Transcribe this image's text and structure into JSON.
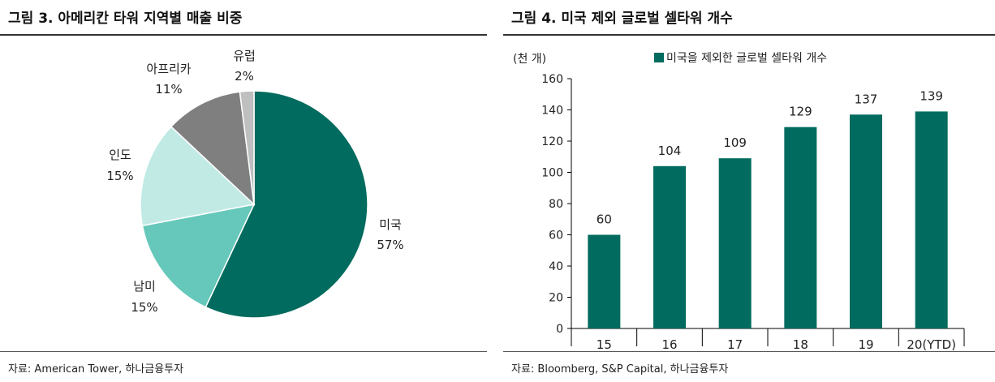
{
  "left": {
    "title": "그림 3. 아메리칸 타워 지역별 매출 비중",
    "source": "자료: American Tower, 하나금융투자"
  },
  "right": {
    "title": "그림 4. 미국 제외 글로벌 셀타워 개수",
    "source": "자료: Bloomberg, S&P Capital, 하나금융투자"
  },
  "chart_data": [
    {
      "type": "pie",
      "title": "",
      "start": "12 o'clock, clockwise",
      "slices": [
        {
          "label": "미국",
          "value": 57,
          "value_label": "57%",
          "color": "#006B5E"
        },
        {
          "label": "남미",
          "value": 15,
          "value_label": "15%",
          "color": "#66C8BA"
        },
        {
          "label": "인도",
          "value": 15,
          "value_label": "15%",
          "color": "#C2EAE5"
        },
        {
          "label": "아프리카",
          "value": 11,
          "value_label": "11%",
          "color": "#7F7F7F"
        },
        {
          "label": "유럽",
          "value": 2,
          "value_label": "2%",
          "color": "#BFBFBF"
        }
      ],
      "legend": "none"
    },
    {
      "type": "bar",
      "title": "",
      "ylabel": "(천 개)",
      "xlabel": "",
      "categories": [
        "15",
        "16",
        "17",
        "18",
        "19",
        "20(YTD)"
      ],
      "series": [
        {
          "name": "미국을 제외한 글로벌 셀타워 개수",
          "values": [
            60,
            104,
            109,
            129,
            137,
            139
          ],
          "color": "#006B5E"
        }
      ],
      "ylim": [
        0,
        160
      ],
      "yticks": [
        0,
        20,
        40,
        60,
        80,
        100,
        120,
        140,
        160
      ],
      "grid": false,
      "legend": "top"
    }
  ]
}
